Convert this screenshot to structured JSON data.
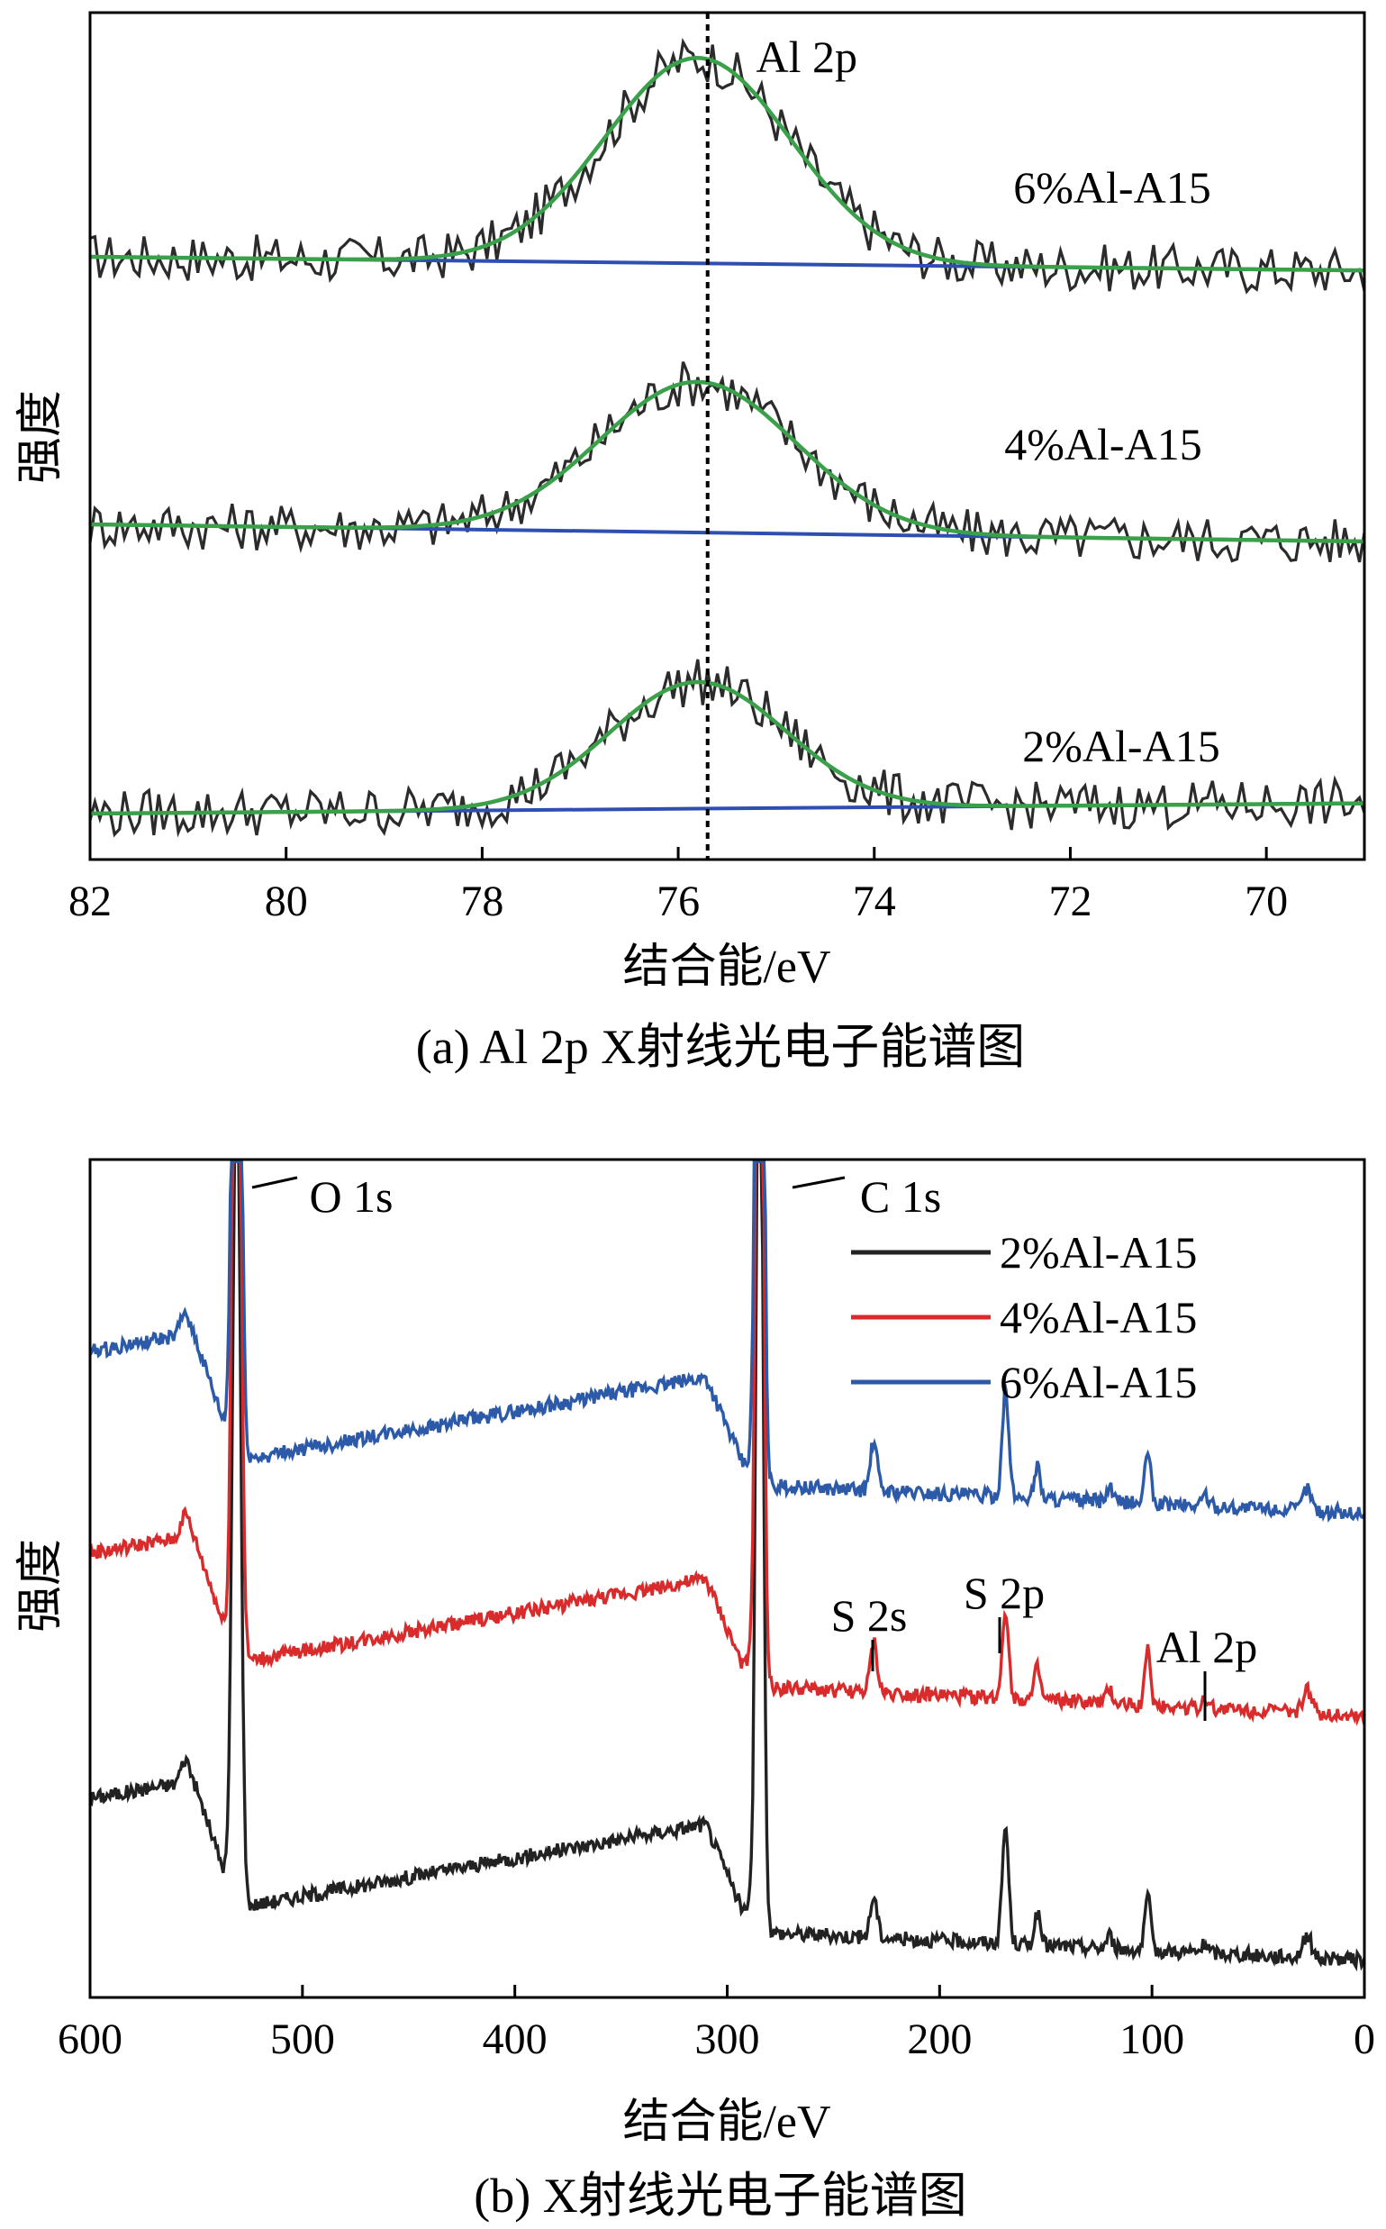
{
  "chart_data": [
    {
      "type": "line",
      "panel": "a",
      "caption": "(a) Al 2p X射线光电子能谱图",
      "xlabel": "结合能/eV",
      "ylabel": "强度",
      "xlim": [
        82,
        69
      ],
      "x_ticks": [
        82,
        80,
        78,
        76,
        74,
        72,
        70
      ],
      "x_reversed": true,
      "y_ticks_shown": false,
      "grid": false,
      "reference_line": {
        "x": 75.7,
        "label": "Al 2p"
      },
      "series": [
        {
          "name": "6%Al-A15",
          "color_raw": "#2b2b2b",
          "color_fit": "#3aa04a",
          "color_baseline": "#2f4fb0",
          "peak_center": 75.8,
          "peak_height": 0.6,
          "peak_width": 0.95,
          "baseline_start": 0.0,
          "baseline_end": -0.04,
          "noise": 0.07
        },
        {
          "name": "4%Al-A15",
          "color_raw": "#2b2b2b",
          "color_fit": "#3aa04a",
          "color_baseline": "#2f4fb0",
          "peak_center": 75.8,
          "peak_height": 0.44,
          "peak_width": 1.0,
          "baseline_start": 0.0,
          "baseline_end": -0.05,
          "noise": 0.07
        },
        {
          "name": "2%Al-A15",
          "color_raw": "#2b2b2b",
          "color_fit": "#3aa04a",
          "color_baseline": "#2f4fb0",
          "peak_center": 75.8,
          "peak_height": 0.37,
          "peak_width": 0.9,
          "baseline_start": 0.0,
          "baseline_end": 0.03,
          "noise": 0.07
        }
      ]
    },
    {
      "type": "line",
      "panel": "b",
      "caption": "(b) X射线光电子能谱图",
      "xlabel": "结合能/eV",
      "ylabel": "强度",
      "xlim": [
        600,
        0
      ],
      "x_ticks": [
        600,
        500,
        400,
        300,
        200,
        100,
        0
      ],
      "x_reversed": true,
      "y_ticks_shown": false,
      "grid": false,
      "legend": {
        "position": "top-right",
        "entries": [
          "2%Al-A15",
          "4%Al-A15",
          "6%Al-A15"
        ]
      },
      "peak_labels": [
        {
          "label": "O 1s",
          "x": 531
        },
        {
          "label": "C 1s",
          "x": 284.8
        },
        {
          "label": "S 2s",
          "x": 231
        },
        {
          "label": "S 2p",
          "x": 169
        },
        {
          "label": "Al 2p",
          "x": 75
        }
      ],
      "series": [
        {
          "name": "2%Al-A15",
          "color": "#222222",
          "offset": 0.0
        },
        {
          "name": "4%Al-A15",
          "color": "#d92b2b",
          "offset": 0.85
        },
        {
          "name": "6%Al-A15",
          "color": "#2c5aa8",
          "offset": 1.55
        }
      ]
    }
  ]
}
